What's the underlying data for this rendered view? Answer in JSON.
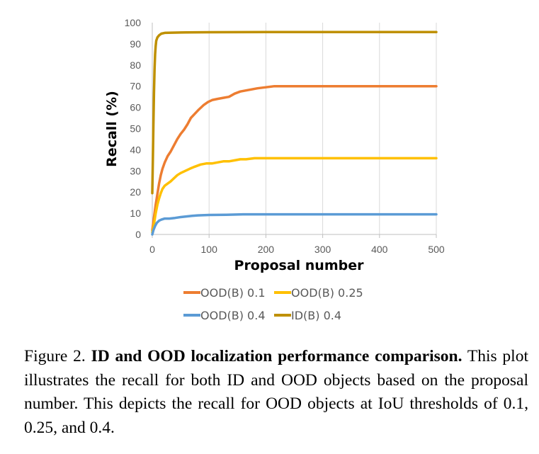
{
  "chart_data": {
    "type": "line",
    "title": "",
    "xlabel": "Proposal number",
    "ylabel": "Recall (%)",
    "xlim": [
      0,
      500
    ],
    "ylim": [
      0,
      100
    ],
    "xticks": [
      0,
      100,
      200,
      300,
      400,
      500
    ],
    "yticks": [
      0,
      10,
      20,
      30,
      40,
      50,
      60,
      70,
      80,
      90,
      100
    ],
    "grid": "vertical",
    "legend_position": "bottom",
    "series": [
      {
        "name": "OOD(B) 0.1",
        "color": "#ED7D31",
        "points": [
          [
            0,
            2
          ],
          [
            3,
            8
          ],
          [
            6,
            14
          ],
          [
            9,
            19
          ],
          [
            12,
            24
          ],
          [
            15,
            28
          ],
          [
            18,
            31
          ],
          [
            22,
            34
          ],
          [
            27,
            37
          ],
          [
            32,
            39
          ],
          [
            38,
            42
          ],
          [
            44,
            45
          ],
          [
            50,
            47.5
          ],
          [
            56,
            49.5
          ],
          [
            62,
            52
          ],
          [
            68,
            55
          ],
          [
            75,
            57
          ],
          [
            82,
            59
          ],
          [
            90,
            61
          ],
          [
            98,
            62.5
          ],
          [
            106,
            63.5
          ],
          [
            115,
            64
          ],
          [
            125,
            64.5
          ],
          [
            135,
            65
          ],
          [
            145,
            66.5
          ],
          [
            155,
            67.5
          ],
          [
            165,
            68
          ],
          [
            175,
            68.5
          ],
          [
            185,
            69
          ],
          [
            200,
            69.5
          ],
          [
            215,
            70
          ],
          [
            230,
            70
          ],
          [
            260,
            70
          ],
          [
            300,
            70
          ],
          [
            400,
            70
          ],
          [
            500,
            70
          ]
        ]
      },
      {
        "name": "OOD(B) 0.25",
        "color": "#FFC000",
        "points": [
          [
            0,
            1
          ],
          [
            3,
            5
          ],
          [
            6,
            10
          ],
          [
            9,
            14
          ],
          [
            12,
            17
          ],
          [
            15,
            19.5
          ],
          [
            18,
            21.5
          ],
          [
            22,
            23
          ],
          [
            27,
            24
          ],
          [
            32,
            25
          ],
          [
            38,
            26.5
          ],
          [
            44,
            28
          ],
          [
            50,
            29
          ],
          [
            58,
            30
          ],
          [
            66,
            31
          ],
          [
            75,
            32
          ],
          [
            85,
            33
          ],
          [
            95,
            33.5
          ],
          [
            105,
            33.5
          ],
          [
            115,
            34
          ],
          [
            125,
            34.5
          ],
          [
            135,
            34.5
          ],
          [
            145,
            35
          ],
          [
            155,
            35.5
          ],
          [
            165,
            35.5
          ],
          [
            180,
            36
          ],
          [
            200,
            36
          ],
          [
            300,
            36
          ],
          [
            400,
            36
          ],
          [
            500,
            36
          ]
        ]
      },
      {
        "name": "OOD(B) 0.4",
        "color": "#5B9BD5",
        "points": [
          [
            0,
            0
          ],
          [
            2,
            2
          ],
          [
            5,
            4
          ],
          [
            8,
            5.5
          ],
          [
            12,
            6.5
          ],
          [
            16,
            7
          ],
          [
            22,
            7.5
          ],
          [
            30,
            7.5
          ],
          [
            40,
            7.8
          ],
          [
            50,
            8.2
          ],
          [
            60,
            8.5
          ],
          [
            70,
            8.8
          ],
          [
            80,
            9
          ],
          [
            100,
            9.2
          ],
          [
            130,
            9.3
          ],
          [
            160,
            9.5
          ],
          [
            200,
            9.5
          ],
          [
            300,
            9.5
          ],
          [
            400,
            9.5
          ],
          [
            500,
            9.5
          ]
        ]
      },
      {
        "name": "ID(B) 0.4",
        "color": "#BF9000",
        "points": [
          [
            0,
            19.5
          ],
          [
            1,
            35
          ],
          [
            2,
            52
          ],
          [
            3,
            67
          ],
          [
            4,
            78
          ],
          [
            5,
            85
          ],
          [
            6,
            89
          ],
          [
            7,
            91.5
          ],
          [
            9,
            93
          ],
          [
            12,
            94
          ],
          [
            16,
            94.8
          ],
          [
            22,
            95.2
          ],
          [
            35,
            95.3
          ],
          [
            60,
            95.4
          ],
          [
            100,
            95.5
          ],
          [
            200,
            95.6
          ],
          [
            300,
            95.6
          ],
          [
            400,
            95.6
          ],
          [
            500,
            95.6
          ]
        ]
      }
    ]
  },
  "caption": {
    "prefix": "Figure 2. ",
    "bold": "ID and OOD localization performance comparison.",
    "body": " This plot illustrates the recall for both ID and OOD objects based on the proposal number. This depicts the recall for OOD objects at IoU thresholds of 0.1, 0.25, and 0.4."
  }
}
